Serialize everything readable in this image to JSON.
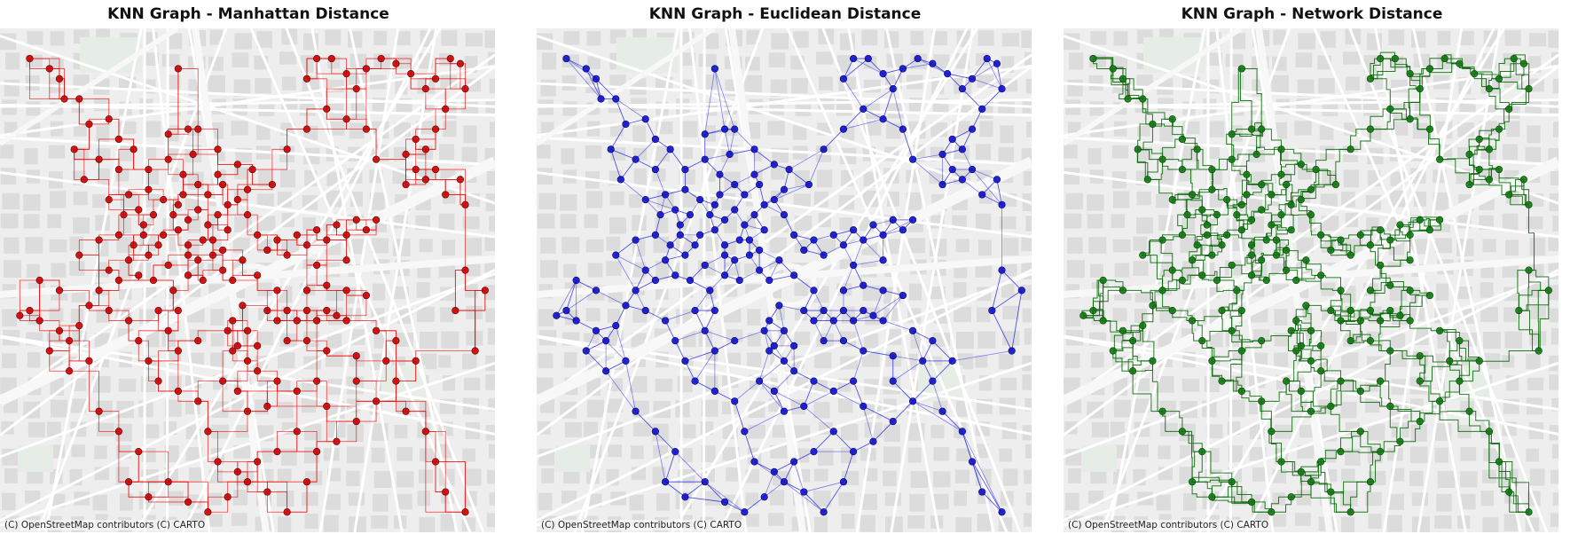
{
  "attribution": "(C) OpenStreetMap contributors (C) CARTO",
  "basemap": {
    "background": "#eeeeee",
    "block_fill": "#dcdcdc",
    "street": "#ffffff",
    "major_road": "#f8f8f8",
    "park": "#e6ece6"
  },
  "panels": [
    {
      "id": "manhattan",
      "title": "KNN Graph - Manhattan Distance",
      "edge_style": "manhattan",
      "color": "#ee0000",
      "node_fill": "#cc0000",
      "node_stroke": "#550000",
      "edge_opacity": 0.75,
      "edge_width": 0.8
    },
    {
      "id": "euclidean",
      "title": "KNN Graph - Euclidean Distance",
      "edge_style": "euclidean",
      "color": "#2020ee",
      "node_fill": "#1010cc",
      "node_stroke": "#000066",
      "edge_opacity": 0.55,
      "edge_width": 0.8
    },
    {
      "id": "network",
      "title": "KNN Graph - Network Distance",
      "edge_style": "network",
      "color": "#006600",
      "node_fill": "#117711",
      "node_stroke": "#004400",
      "edge_opacity": 0.85,
      "edge_width": 1.0
    }
  ],
  "graph": {
    "nodes": [
      [
        0.06,
        0.06
      ],
      [
        0.13,
        0.14
      ],
      [
        0.18,
        0.19
      ],
      [
        0.2,
        0.26
      ],
      [
        0.24,
        0.28
      ],
      [
        0.26,
        0.33
      ],
      [
        0.28,
        0.36
      ],
      [
        0.29,
        0.39
      ],
      [
        0.31,
        0.37
      ],
      [
        0.33,
        0.34
      ],
      [
        0.35,
        0.37
      ],
      [
        0.36,
        0.4
      ],
      [
        0.38,
        0.38
      ],
      [
        0.4,
        0.36
      ],
      [
        0.42,
        0.39
      ],
      [
        0.44,
        0.37
      ],
      [
        0.46,
        0.4
      ],
      [
        0.37,
        0.29
      ],
      [
        0.39,
        0.25
      ],
      [
        0.4,
        0.31
      ],
      [
        0.42,
        0.33
      ],
      [
        0.45,
        0.31
      ],
      [
        0.48,
        0.34
      ],
      [
        0.5,
        0.32
      ],
      [
        0.36,
        0.08
      ],
      [
        0.38,
        0.2
      ],
      [
        0.38,
        0.45
      ],
      [
        0.34,
        0.47
      ],
      [
        0.32,
        0.43
      ],
      [
        0.3,
        0.45
      ],
      [
        0.28,
        0.49
      ],
      [
        0.26,
        0.46
      ],
      [
        0.24,
        0.5
      ],
      [
        0.22,
        0.48
      ],
      [
        0.2,
        0.52
      ],
      [
        0.18,
        0.55
      ],
      [
        0.16,
        0.59
      ],
      [
        0.14,
        0.62
      ],
      [
        0.12,
        0.6
      ],
      [
        0.1,
        0.64
      ],
      [
        0.08,
        0.58
      ],
      [
        0.06,
        0.56
      ],
      [
        0.04,
        0.57
      ],
      [
        0.08,
        0.5
      ],
      [
        0.12,
        0.52
      ],
      [
        0.16,
        0.45
      ],
      [
        0.2,
        0.42
      ],
      [
        0.24,
        0.41
      ],
      [
        0.27,
        0.43
      ],
      [
        0.31,
        0.5
      ],
      [
        0.35,
        0.52
      ],
      [
        0.38,
        0.49
      ],
      [
        0.4,
        0.46
      ],
      [
        0.43,
        0.45
      ],
      [
        0.45,
        0.48
      ],
      [
        0.43,
        0.42
      ],
      [
        0.41,
        0.5
      ],
      [
        0.47,
        0.5
      ],
      [
        0.49,
        0.46
      ],
      [
        0.52,
        0.49
      ],
      [
        0.52,
        0.41
      ],
      [
        0.54,
        0.44
      ],
      [
        0.56,
        0.42
      ],
      [
        0.58,
        0.45
      ],
      [
        0.6,
        0.41
      ],
      [
        0.62,
        0.43
      ],
      [
        0.64,
        0.4
      ],
      [
        0.66,
        0.42
      ],
      [
        0.68,
        0.39
      ],
      [
        0.7,
        0.41
      ],
      [
        0.72,
        0.38
      ],
      [
        0.74,
        0.4
      ],
      [
        0.76,
        0.38
      ],
      [
        0.64,
        0.47
      ],
      [
        0.62,
        0.52
      ],
      [
        0.56,
        0.52
      ],
      [
        0.54,
        0.56
      ],
      [
        0.56,
        0.58
      ],
      [
        0.58,
        0.56
      ],
      [
        0.6,
        0.58
      ],
      [
        0.62,
        0.56
      ],
      [
        0.64,
        0.58
      ],
      [
        0.66,
        0.56
      ],
      [
        0.68,
        0.57
      ],
      [
        0.62,
        0.62
      ],
      [
        0.58,
        0.62
      ],
      [
        0.5,
        0.6
      ],
      [
        0.47,
        0.58
      ],
      [
        0.49,
        0.55
      ],
      [
        0.48,
        0.63
      ],
      [
        0.5,
        0.66
      ],
      [
        0.46,
        0.6
      ],
      [
        0.52,
        0.63
      ],
      [
        0.62,
        0.1
      ],
      [
        0.64,
        0.06
      ],
      [
        0.67,
        0.06
      ],
      [
        0.7,
        0.09
      ],
      [
        0.72,
        0.12
      ],
      [
        0.74,
        0.08
      ],
      [
        0.77,
        0.06
      ],
      [
        0.8,
        0.07
      ],
      [
        0.83,
        0.09
      ],
      [
        0.86,
        0.12
      ],
      [
        0.88,
        0.1
      ],
      [
        0.91,
        0.06
      ],
      [
        0.93,
        0.07
      ],
      [
        0.94,
        0.12
      ],
      [
        0.9,
        0.16
      ],
      [
        0.88,
        0.2
      ],
      [
        0.86,
        0.24
      ],
      [
        0.84,
        0.22
      ],
      [
        0.82,
        0.25
      ],
      [
        0.84,
        0.28
      ],
      [
        0.82,
        0.31
      ],
      [
        0.86,
        0.3
      ],
      [
        0.88,
        0.28
      ],
      [
        0.9,
        0.33
      ],
      [
        0.93,
        0.3
      ],
      [
        0.94,
        0.35
      ],
      [
        0.76,
        0.26
      ],
      [
        0.74,
        0.2
      ],
      [
        0.7,
        0.18
      ],
      [
        0.66,
        0.16
      ],
      [
        0.62,
        0.2
      ],
      [
        0.58,
        0.24
      ],
      [
        0.55,
        0.31
      ],
      [
        0.51,
        0.28
      ],
      [
        0.48,
        0.27
      ],
      [
        0.44,
        0.24
      ],
      [
        0.4,
        0.2
      ],
      [
        0.7,
        0.58
      ],
      [
        0.66,
        0.64
      ],
      [
        0.72,
        0.65
      ],
      [
        0.76,
        0.6
      ],
      [
        0.74,
        0.53
      ],
      [
        0.7,
        0.52
      ],
      [
        0.66,
        0.51
      ],
      [
        0.7,
        0.46
      ],
      [
        0.47,
        0.64
      ],
      [
        0.45,
        0.7
      ],
      [
        0.48,
        0.72
      ],
      [
        0.5,
        0.76
      ],
      [
        0.54,
        0.75
      ],
      [
        0.56,
        0.7
      ],
      [
        0.52,
        0.68
      ],
      [
        0.6,
        0.72
      ],
      [
        0.64,
        0.7
      ],
      [
        0.66,
        0.75
      ],
      [
        0.6,
        0.8
      ],
      [
        0.56,
        0.84
      ],
      [
        0.52,
        0.86
      ],
      [
        0.48,
        0.88
      ],
      [
        0.44,
        0.86
      ],
      [
        0.42,
        0.8
      ],
      [
        0.4,
        0.74
      ],
      [
        0.36,
        0.72
      ],
      [
        0.32,
        0.7
      ],
      [
        0.3,
        0.66
      ],
      [
        0.28,
        0.62
      ],
      [
        0.26,
        0.58
      ],
      [
        0.22,
        0.56
      ],
      [
        0.18,
        0.66
      ],
      [
        0.14,
        0.68
      ],
      [
        0.2,
        0.76
      ],
      [
        0.24,
        0.8
      ],
      [
        0.28,
        0.84
      ],
      [
        0.26,
        0.9
      ],
      [
        0.3,
        0.93
      ],
      [
        0.34,
        0.9
      ],
      [
        0.38,
        0.94
      ],
      [
        0.42,
        0.96
      ],
      [
        0.46,
        0.93
      ],
      [
        0.5,
        0.9
      ],
      [
        0.54,
        0.92
      ],
      [
        0.58,
        0.96
      ],
      [
        0.62,
        0.9
      ],
      [
        0.64,
        0.84
      ],
      [
        0.68,
        0.82
      ],
      [
        0.72,
        0.78
      ],
      [
        0.76,
        0.74
      ],
      [
        0.8,
        0.7
      ],
      [
        0.82,
        0.76
      ],
      [
        0.86,
        0.8
      ],
      [
        0.88,
        0.86
      ],
      [
        0.9,
        0.92
      ],
      [
        0.94,
        0.96
      ],
      [
        0.96,
        0.64
      ],
      [
        0.92,
        0.56
      ],
      [
        0.94,
        0.48
      ],
      [
        0.98,
        0.52
      ],
      [
        0.8,
        0.62
      ],
      [
        0.78,
        0.66
      ],
      [
        0.84,
        0.66
      ],
      [
        0.72,
        0.7
      ],
      [
        0.36,
        0.64
      ],
      [
        0.4,
        0.62
      ],
      [
        0.34,
        0.6
      ],
      [
        0.32,
        0.56
      ],
      [
        0.36,
        0.56
      ],
      [
        0.3,
        0.28
      ],
      [
        0.27,
        0.24
      ],
      [
        0.24,
        0.22
      ],
      [
        0.22,
        0.18
      ],
      [
        0.16,
        0.14
      ],
      [
        0.12,
        0.1
      ],
      [
        0.1,
        0.08
      ],
      [
        0.15,
        0.24
      ],
      [
        0.17,
        0.3
      ],
      [
        0.22,
        0.34
      ],
      [
        0.25,
        0.37
      ],
      [
        0.3,
        0.32
      ],
      [
        0.34,
        0.26
      ],
      [
        0.34,
        0.21
      ],
      [
        0.37,
        0.33
      ],
      [
        0.44,
        0.29
      ],
      [
        0.46,
        0.35
      ],
      [
        0.5,
        0.37
      ],
      [
        0.41,
        0.42
      ],
      [
        0.45,
        0.44
      ],
      [
        0.38,
        0.43
      ],
      [
        0.29,
        0.41
      ],
      [
        0.33,
        0.41
      ],
      [
        0.36,
        0.35
      ]
    ]
  }
}
